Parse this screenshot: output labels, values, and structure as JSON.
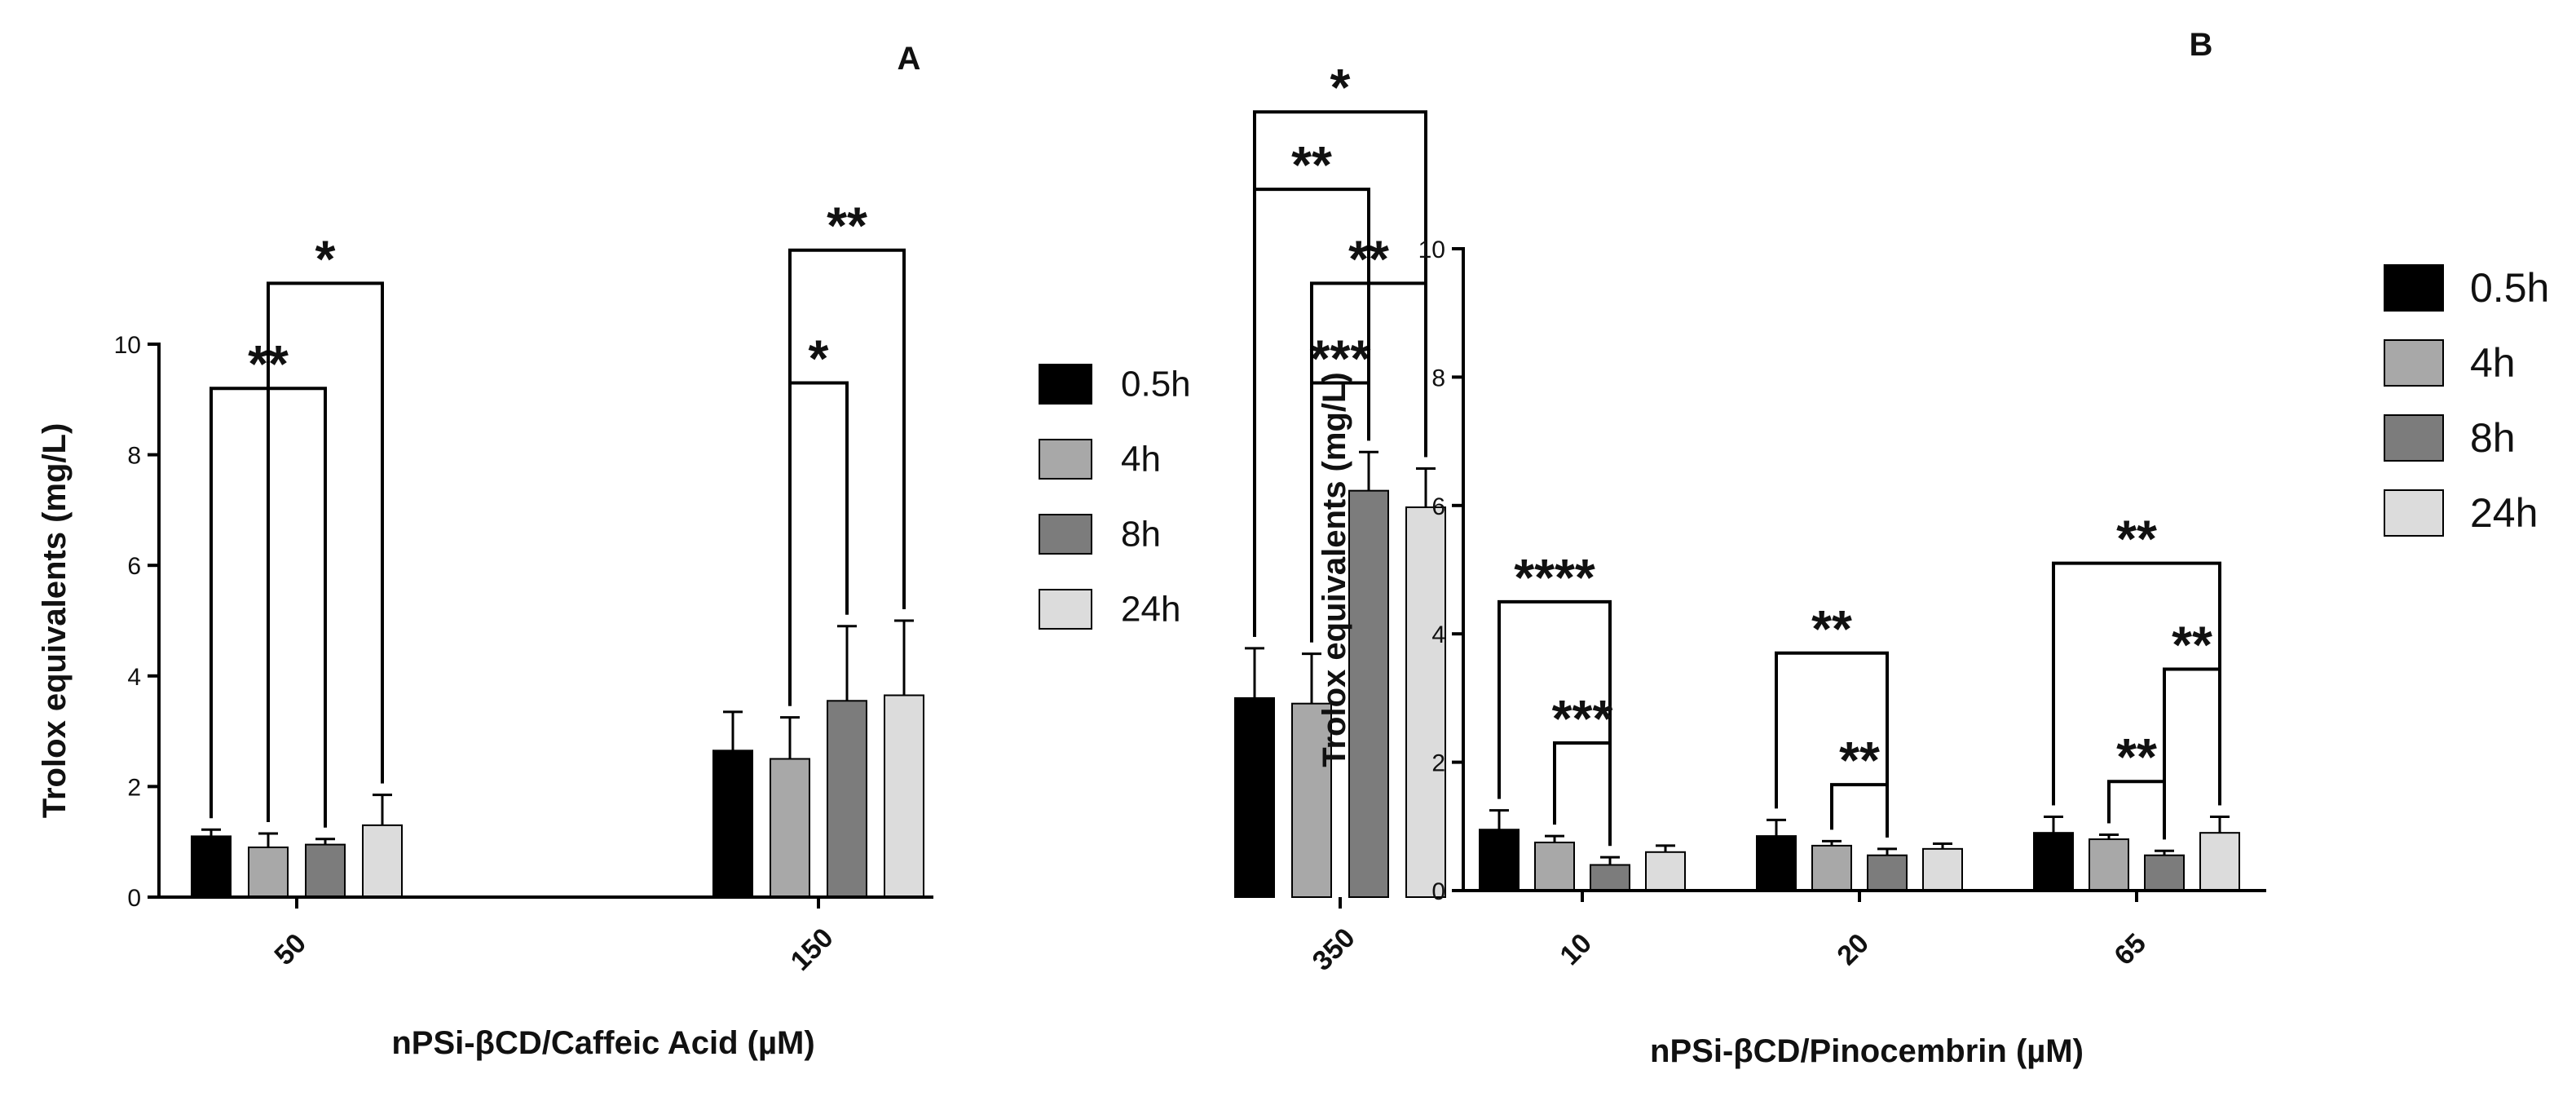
{
  "chart_data": [
    {
      "type": "bar",
      "panel": "A",
      "title": "",
      "xlabel": "nPSi-βCD/Caffeic Acid (µM)",
      "ylabel": "Trolox equivalents (mg/L)",
      "ylim": [
        0,
        10
      ],
      "yticks": [
        0,
        2,
        4,
        6,
        8,
        10
      ],
      "categories": [
        "50",
        "150",
        "350"
      ],
      "series": [
        {
          "name": "0.5h",
          "color": "#000000",
          "values": [
            1.1,
            2.65,
            3.6
          ],
          "errors": [
            0.12,
            0.7,
            0.9
          ]
        },
        {
          "name": "4h",
          "color": "#a8a8a8",
          "values": [
            0.9,
            2.5,
            3.5
          ],
          "errors": [
            0.25,
            0.75,
            0.9
          ]
        },
        {
          "name": "8h",
          "color": "#7c7c7c",
          "values": [
            0.95,
            3.55,
            7.35
          ],
          "errors": [
            0.1,
            1.35,
            0.7
          ]
        },
        {
          "name": "24h",
          "color": "#dcdcdc",
          "values": [
            1.3,
            3.65,
            7.05
          ],
          "errors": [
            0.55,
            1.35,
            0.7
          ]
        }
      ],
      "annotations": [
        {
          "label": "**",
          "category": 0,
          "from": 0,
          "to": 2,
          "y": 9.2
        },
        {
          "label": "*",
          "category": 0,
          "from": 1,
          "to": 3,
          "y": 11.1
        },
        {
          "label": "*",
          "category": 1,
          "from": 1,
          "to": 2,
          "y": 9.3
        },
        {
          "label": "**",
          "category": 1,
          "from": 1,
          "to": 3,
          "y": 11.7
        },
        {
          "label": "***",
          "category": 2,
          "from": 1,
          "to": 2,
          "y": 9.3
        },
        {
          "label": "**",
          "category": 2,
          "from": 1,
          "to": 3,
          "y": 11.1
        },
        {
          "label": "**",
          "category": 2,
          "from": 0,
          "to": 2,
          "y": 12.8
        },
        {
          "label": "*",
          "category": 2,
          "from": 0,
          "to": 3,
          "y": 14.2
        }
      ]
    },
    {
      "type": "bar",
      "panel": "B",
      "title": "",
      "xlabel": "nPSi-βCD/Pinocembrin (µM)",
      "ylabel": "Trolox equivalents (mg/L)",
      "ylim": [
        0,
        10
      ],
      "yticks": [
        0,
        2,
        4,
        6,
        8,
        10
      ],
      "categories": [
        "10",
        "20",
        "65"
      ],
      "series": [
        {
          "name": "0.5h",
          "color": "#000000",
          "values": [
            0.95,
            0.85,
            0.9
          ],
          "errors": [
            0.3,
            0.25,
            0.25
          ]
        },
        {
          "name": "4h",
          "color": "#a8a8a8",
          "values": [
            0.75,
            0.7,
            0.8
          ],
          "errors": [
            0.1,
            0.07,
            0.07
          ]
        },
        {
          "name": "8h",
          "color": "#7c7c7c",
          "values": [
            0.4,
            0.55,
            0.55
          ],
          "errors": [
            0.12,
            0.1,
            0.07
          ]
        },
        {
          "name": "24h",
          "color": "#dcdcdc",
          "values": [
            0.6,
            0.65,
            0.9
          ],
          "errors": [
            0.1,
            0.08,
            0.25
          ]
        }
      ],
      "annotations": [
        {
          "label": "****",
          "category": 0,
          "from": 0,
          "to": 2,
          "y": 4.5
        },
        {
          "label": "***",
          "category": 0,
          "from": 1,
          "to": 2,
          "y": 2.3
        },
        {
          "label": "**",
          "category": 1,
          "from": 0,
          "to": 2,
          "y": 3.7
        },
        {
          "label": "**",
          "category": 1,
          "from": 1,
          "to": 2,
          "y": 1.65
        },
        {
          "label": "**",
          "category": 2,
          "from": 0,
          "to": 3,
          "y": 5.1
        },
        {
          "label": "**",
          "category": 2,
          "from": 2,
          "to": 3,
          "y": 3.45
        },
        {
          "label": "**",
          "category": 2,
          "from": 1,
          "to": 2,
          "y": 1.7
        }
      ]
    }
  ]
}
